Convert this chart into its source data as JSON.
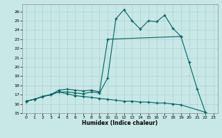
{
  "xlabel": "Humidex (Indice chaleur)",
  "xlim": [
    -0.5,
    23.5
  ],
  "ylim": [
    15,
    26.8
  ],
  "yticks": [
    15,
    16,
    17,
    18,
    19,
    20,
    21,
    22,
    23,
    24,
    25,
    26
  ],
  "xticks": [
    0,
    1,
    2,
    3,
    4,
    5,
    6,
    7,
    8,
    9,
    10,
    11,
    12,
    13,
    14,
    15,
    16,
    17,
    18,
    19,
    20,
    21,
    22,
    23
  ],
  "bg_color": "#c8e8e8",
  "grid_color": "#a8cccc",
  "line_color": "#006060",
  "line1_x": [
    0,
    1,
    2,
    3,
    4,
    5,
    6,
    7,
    8,
    9,
    10,
    11,
    12,
    13,
    14,
    15,
    16,
    17,
    18,
    19,
    20,
    21,
    22
  ],
  "line1_y": [
    16.3,
    16.5,
    16.8,
    17.0,
    17.3,
    17.3,
    17.2,
    17.1,
    17.3,
    17.2,
    18.8,
    25.2,
    26.2,
    25.0,
    24.1,
    25.0,
    24.9,
    25.6,
    24.2,
    23.3,
    20.5,
    17.6,
    15.1
  ],
  "line2_x": [
    0,
    1,
    2,
    3,
    4,
    5,
    6,
    7,
    8,
    9,
    10,
    19
  ],
  "line2_y": [
    16.3,
    16.5,
    16.8,
    17.0,
    17.5,
    17.6,
    17.5,
    17.4,
    17.5,
    17.3,
    23.0,
    23.3
  ],
  "line3_x": [
    0,
    1,
    2,
    3,
    4,
    5,
    6,
    7,
    8,
    9,
    10,
    11,
    12,
    13,
    14,
    15,
    16,
    17,
    18,
    19,
    22
  ],
  "line3_y": [
    16.3,
    16.5,
    16.8,
    17.0,
    17.3,
    17.1,
    16.9,
    16.8,
    16.7,
    16.6,
    16.5,
    16.4,
    16.3,
    16.3,
    16.2,
    16.2,
    16.1,
    16.1,
    16.0,
    15.9,
    15.1
  ]
}
